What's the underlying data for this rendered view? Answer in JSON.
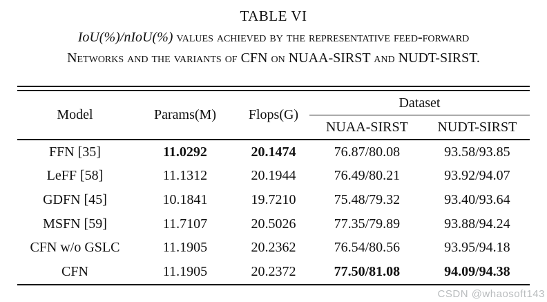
{
  "title": "TABLE VI",
  "caption": {
    "math": "IoU(%)/nIoU(%)",
    "line1_rest": " values achieved by the representative feed-forward",
    "line2": "Networks and the variants of CFN on NUAA-SIRST and NUDT-SIRST."
  },
  "table": {
    "columns": [
      "Model",
      "Params(M)",
      "Flops(G)"
    ],
    "dataset_header": "Dataset",
    "dataset_columns": [
      "NUAA-SIRST",
      "NUDT-SIRST"
    ],
    "rows": [
      {
        "cells": [
          "FFN [35]",
          "11.0292",
          "20.1474",
          "76.87/80.08",
          "93.58/93.85"
        ],
        "bold": [
          false,
          true,
          true,
          false,
          false
        ]
      },
      {
        "cells": [
          "LeFF [58]",
          "11.1312",
          "20.1944",
          "76.49/80.21",
          "93.92/94.07"
        ],
        "bold": [
          false,
          false,
          false,
          false,
          false
        ]
      },
      {
        "cells": [
          "GDFN [45]",
          "10.1841",
          "19.7210",
          "75.48/79.32",
          "93.40/93.64"
        ],
        "bold": [
          false,
          false,
          false,
          false,
          false
        ]
      },
      {
        "cells": [
          "MSFN [59]",
          "11.7107",
          "20.5026",
          "77.35/79.89",
          "93.88/94.24"
        ],
        "bold": [
          false,
          false,
          false,
          false,
          false
        ]
      },
      {
        "cells": [
          "CFN w/o GSLC",
          "11.1905",
          "20.2362",
          "76.54/80.56",
          "93.95/94.18"
        ],
        "bold": [
          false,
          false,
          false,
          false,
          false
        ]
      },
      {
        "cells": [
          "CFN",
          "11.1905",
          "20.2372",
          "77.50/81.08",
          "94.09/94.38"
        ],
        "bold": [
          false,
          false,
          false,
          true,
          true
        ]
      }
    ]
  },
  "watermark": "CSDN @whaosoft143",
  "colors": {
    "text": "#111111",
    "rule": "#161616",
    "watermark_gray": "#b9bcbe",
    "background": "#ffffff"
  }
}
